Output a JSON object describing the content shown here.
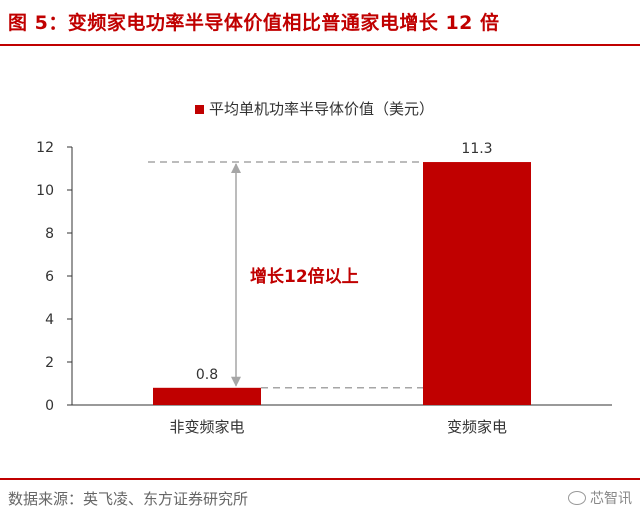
{
  "header": {
    "title": "图 5：变频家电功率半导体价值相比普通家电增长 12 倍"
  },
  "chart_data": {
    "type": "bar",
    "categories": [
      "非变频家电",
      "变频家电"
    ],
    "series": [
      {
        "name": "平均单机功率半导体价值（美元）",
        "values": [
          0.8,
          11.3
        ]
      }
    ],
    "data_labels": [
      "0.8",
      "11.3"
    ],
    "ylim": [
      0,
      12
    ],
    "yticks": [
      0,
      2,
      4,
      6,
      8,
      10,
      12
    ],
    "legend_position": "top-center",
    "grid": false,
    "annotation": "增长12倍以上",
    "colors": {
      "bar": "#c00000",
      "annotation": "#c00000",
      "guide": "#a6a6a6"
    }
  },
  "footer": {
    "source": "数据来源：英飞凌、东方证券研究所",
    "watermark": "芯智讯"
  }
}
